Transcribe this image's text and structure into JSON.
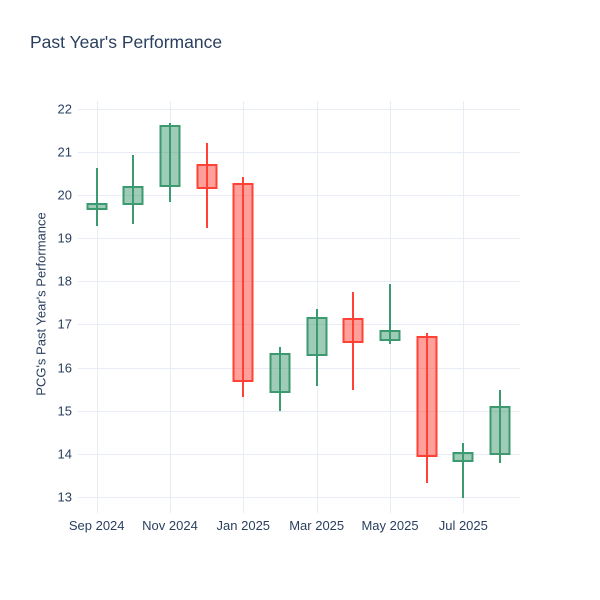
{
  "header": {
    "title": "Past Year's Performance"
  },
  "chart_data": {
    "type": "candlestick",
    "title": "Past Year's Performance",
    "xlabel": "",
    "ylabel": "PCG's Past Year's Performance",
    "ylim": [
      12.72,
      22.18
    ],
    "grid": true,
    "legend": "none",
    "y_ticks": [
      13,
      14,
      15,
      16,
      17,
      18,
      19,
      20,
      21,
      22
    ],
    "x_ticks": [
      {
        "index": 0,
        "label": "Sep 2024"
      },
      {
        "index": 2,
        "label": "Nov 2024"
      },
      {
        "index": 4,
        "label": "Jan 2025"
      },
      {
        "index": 6,
        "label": "Mar 2025"
      },
      {
        "index": 8,
        "label": "May 2025"
      },
      {
        "index": 10,
        "label": "Jul 2025"
      }
    ],
    "candles": [
      {
        "month": "Sep 2024",
        "open": 19.66,
        "high": 20.63,
        "low": 19.27,
        "close": 19.81
      },
      {
        "month": "Oct 2024",
        "open": 19.77,
        "high": 20.94,
        "low": 19.32,
        "close": 20.22
      },
      {
        "month": "Nov 2024",
        "open": 20.19,
        "high": 21.68,
        "low": 19.84,
        "close": 21.62
      },
      {
        "month": "Dec 2024",
        "open": 20.73,
        "high": 21.2,
        "low": 19.23,
        "close": 20.15
      },
      {
        "month": "Jan 2025",
        "open": 20.27,
        "high": 20.42,
        "low": 15.32,
        "close": 15.67
      },
      {
        "month": "Feb 2025",
        "open": 15.4,
        "high": 16.48,
        "low": 14.99,
        "close": 16.34
      },
      {
        "month": "Mar 2025",
        "open": 16.26,
        "high": 17.36,
        "low": 15.57,
        "close": 17.17
      },
      {
        "month": "Apr 2025",
        "open": 17.15,
        "high": 17.75,
        "low": 15.49,
        "close": 16.56
      },
      {
        "month": "May 2025",
        "open": 16.61,
        "high": 17.94,
        "low": 16.54,
        "close": 16.88
      },
      {
        "month": "Jun 2025",
        "open": 16.73,
        "high": 16.81,
        "low": 13.33,
        "close": 13.93
      },
      {
        "month": "Jul 2025",
        "open": 13.82,
        "high": 14.25,
        "low": 12.98,
        "close": 14.04
      },
      {
        "month": "Aug 2025",
        "open": 13.97,
        "high": 15.49,
        "low": 13.79,
        "close": 15.1
      }
    ],
    "colors": {
      "increasing_line": "#3D9970",
      "increasing_fill": "rgba(61,153,112,0.5)",
      "decreasing_line": "#FF4136",
      "decreasing_fill": "rgba(255,65,54,0.5)",
      "grid": "#e7ecf5",
      "text": "#2a3f5f",
      "background": "#ffffff"
    }
  }
}
